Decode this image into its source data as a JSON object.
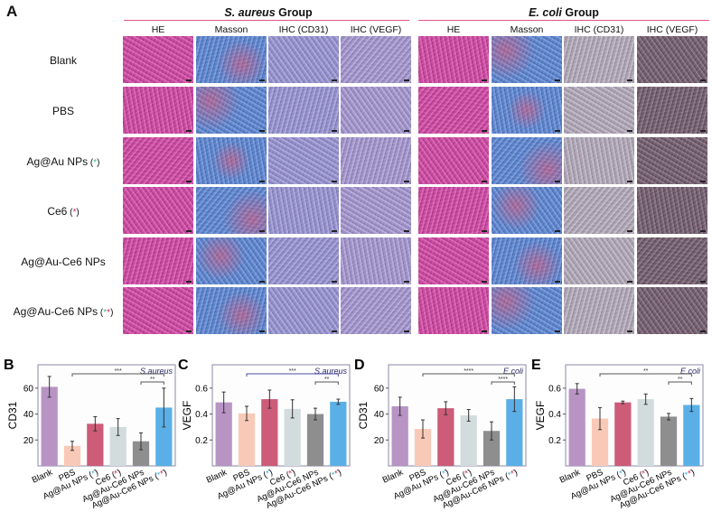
{
  "panel_a": {
    "letter": "A",
    "groups": [
      {
        "title_italic": "S. aureus",
        "title_rest": " Group"
      },
      {
        "title_italic": "E. coli",
        "title_rest": " Group"
      }
    ],
    "columns": [
      "HE",
      "Masson",
      "IHC (CD31)",
      "IHC (VEGF)"
    ],
    "rows": [
      {
        "label": "Blank",
        "marker": ""
      },
      {
        "label": "PBS",
        "marker": ""
      },
      {
        "label": "Ag@Au NPs",
        "marker": "(*)",
        "star_colors": [
          "#3bb9a8"
        ]
      },
      {
        "label": "Ce6",
        "marker": "(*)",
        "star_colors": [
          "#e0245e"
        ]
      },
      {
        "label": "Ag@Au-Ce6 NPs",
        "marker": ""
      },
      {
        "label": "Ag@Au-Ce6 NPs",
        "marker": "(**)",
        "star_colors": [
          "#3bb9a8",
          "#e0245e"
        ]
      }
    ],
    "stain_colors": {
      "HE": "#c2479a",
      "Masson": "#5a7fc4",
      "IHC_CD31_saureus": "#8f8bc4",
      "IHC_VEGF_saureus": "#9a8ec2",
      "IHC_CD31_ecoli": "#a79fae",
      "IHC_VEGF_ecoli": "#6e5a6a"
    }
  },
  "bar_colors": [
    "#b794c4",
    "#f9c9b7",
    "#cc5c78",
    "#d3dcdc",
    "#8e8e8e",
    "#5ab0e6"
  ],
  "categories": [
    "Blank",
    "PBS",
    "Ag@Au NPs (*)",
    "Ce6 (*)",
    "Ag@Au-Ce6 NPs",
    "Ag@Au-Ce6 NPs (**)"
  ],
  "chart_data": [
    {
      "panel": "B",
      "type": "bar",
      "title": "",
      "annotation": "S.aureus",
      "xlabel": "",
      "ylabel": "CD31",
      "ylim": [
        0,
        78
      ],
      "yticks": [
        20,
        40,
        60
      ],
      "categories": [
        "Blank",
        "PBS",
        "Ag@Au NPs (*)",
        "Ce6 (*)",
        "Ag@Au-Ce6 NPs",
        "Ag@Au-Ce6 NPs (**)"
      ],
      "values": [
        61,
        15.5,
        32.5,
        30,
        19,
        45
      ],
      "errors": [
        8,
        3.5,
        5.5,
        6.5,
        6.5,
        15
      ],
      "significance": [
        {
          "from": 1,
          "to": 5,
          "label": "***",
          "level": 0
        },
        {
          "from": 4,
          "to": 5,
          "label": "**",
          "level": 1
        }
      ]
    },
    {
      "panel": "C",
      "type": "bar",
      "title": "",
      "annotation": "S.aureus",
      "xlabel": "",
      "ylabel": "VEGF",
      "ylim": [
        0,
        0.78
      ],
      "yticks": [
        0.2,
        0.4,
        0.6
      ],
      "categories": [
        "Blank",
        "PBS",
        "Ag@Au NPs (*)",
        "Ce6 (*)",
        "Ag@Au-Ce6 NPs",
        "Ag@Au-Ce6 NPs (**)"
      ],
      "values": [
        0.49,
        0.405,
        0.515,
        0.44,
        0.4,
        0.495
      ],
      "errors": [
        0.08,
        0.055,
        0.07,
        0.07,
        0.045,
        0.02
      ],
      "significance": [
        {
          "from": 1,
          "to": 5,
          "label": "***",
          "level": 0
        },
        {
          "from": 4,
          "to": 5,
          "label": "**",
          "level": 1
        }
      ]
    },
    {
      "panel": "D",
      "type": "bar",
      "title": "",
      "annotation": "E.coli",
      "xlabel": "",
      "ylabel": "CD31",
      "ylim": [
        0,
        78
      ],
      "yticks": [
        20,
        40,
        60
      ],
      "categories": [
        "Blank",
        "PBS",
        "Ag@Au NPs (*)",
        "Ce6 (*)",
        "Ag@Au-Ce6 NPs",
        "Ag@Au-Ce6 NPs (**)"
      ],
      "values": [
        46,
        28.5,
        44.5,
        39,
        27,
        51.5
      ],
      "errors": [
        7,
        7,
        5,
        4.5,
        7,
        9.5
      ],
      "significance": [
        {
          "from": 1,
          "to": 5,
          "label": "****",
          "level": 0
        },
        {
          "from": 4,
          "to": 5,
          "label": "****",
          "level": 1
        }
      ]
    },
    {
      "panel": "E",
      "type": "bar",
      "title": "",
      "annotation": "E.coli",
      "xlabel": "",
      "ylabel": "VEGF",
      "ylim": [
        0,
        0.78
      ],
      "yticks": [
        0.2,
        0.4,
        0.6
      ],
      "categories": [
        "Blank",
        "PBS",
        "Ag@Au NPs (*)",
        "Ce6 (*)",
        "Ag@Au-Ce6 NPs",
        "Ag@Au-Ce6 NPs (**)"
      ],
      "values": [
        0.595,
        0.365,
        0.49,
        0.515,
        0.38,
        0.47
      ],
      "errors": [
        0.04,
        0.085,
        0.01,
        0.04,
        0.025,
        0.05
      ],
      "significance": [
        {
          "from": 1,
          "to": 5,
          "label": "**",
          "level": 0
        },
        {
          "from": 4,
          "to": 5,
          "label": "**",
          "level": 1
        }
      ]
    }
  ]
}
